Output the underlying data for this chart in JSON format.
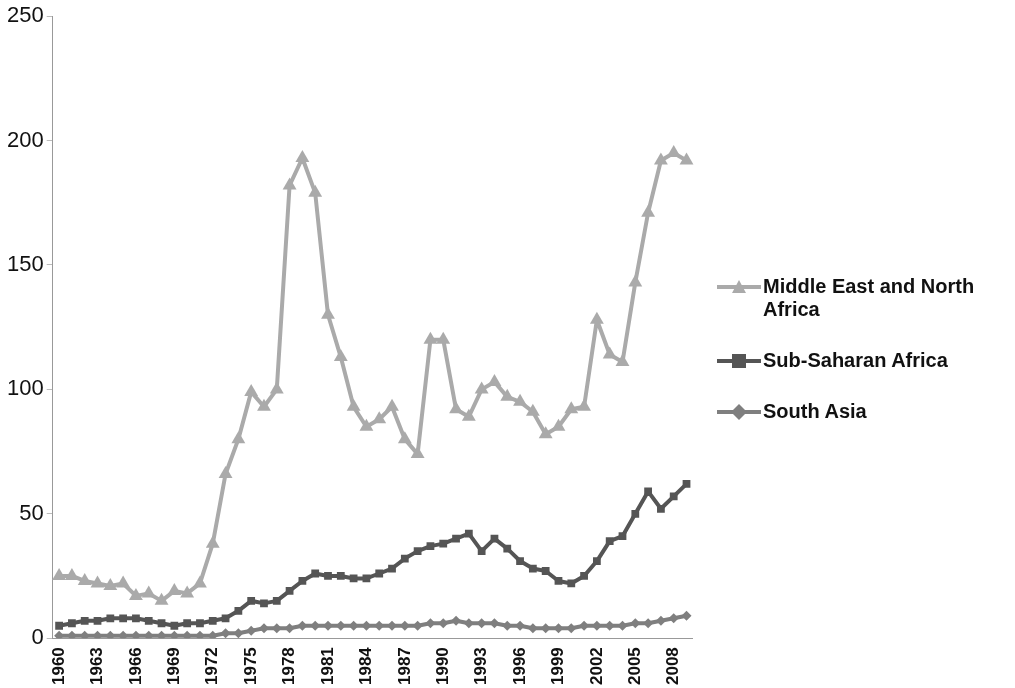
{
  "chart_data": {
    "type": "line",
    "categories": [
      "1960",
      null,
      null,
      "1963",
      null,
      null,
      "1966",
      null,
      null,
      "1969",
      null,
      null,
      "1972",
      null,
      null,
      "1975",
      null,
      null,
      "1978",
      null,
      null,
      "1981",
      null,
      null,
      "1984",
      null,
      null,
      "1987",
      null,
      null,
      "1990",
      null,
      null,
      "1993",
      null,
      null,
      "1996",
      null,
      null,
      "1999",
      null,
      null,
      "2002",
      null,
      null,
      "2005",
      null,
      null,
      "2008",
      null
    ],
    "series": [
      {
        "name": "Middle East and North Africa",
        "color": "#aaaaaa",
        "marker": "triangle",
        "values": [
          25,
          25,
          23,
          22,
          21,
          22,
          17,
          18,
          15,
          19,
          18,
          22,
          38,
          66,
          80,
          99,
          93,
          100,
          182,
          193,
          179,
          130,
          113,
          93,
          85,
          88,
          93,
          80,
          74,
          120,
          120,
          92,
          89,
          100,
          103,
          97,
          95,
          91,
          82,
          85,
          92,
          93,
          128,
          114,
          111,
          143,
          171,
          192,
          195,
          192
        ]
      },
      {
        "name": "Sub-Saharan Africa",
        "color": "#555555",
        "marker": "square",
        "values": [
          5,
          6,
          7,
          7,
          8,
          8,
          8,
          7,
          6,
          5,
          6,
          6,
          7,
          8,
          11,
          15,
          14,
          15,
          19,
          23,
          26,
          25,
          25,
          24,
          24,
          26,
          28,
          32,
          35,
          37,
          38,
          40,
          42,
          35,
          40,
          36,
          31,
          28,
          27,
          23,
          22,
          25,
          31,
          39,
          41,
          50,
          59,
          52,
          57,
          62
        ]
      },
      {
        "name": "South Asia",
        "color": "#7f7f7f",
        "marker": "diamond",
        "values": [
          1,
          1,
          1,
          1,
          1,
          1,
          1,
          1,
          1,
          1,
          1,
          1,
          1,
          2,
          2,
          3,
          4,
          4,
          4,
          5,
          5,
          5,
          5,
          5,
          5,
          5,
          5,
          5,
          5,
          6,
          6,
          7,
          6,
          6,
          6,
          5,
          5,
          4,
          4,
          4,
          4,
          5,
          5,
          5,
          5,
          6,
          6,
          7,
          8,
          9
        ]
      }
    ],
    "ylim": [
      0,
      250
    ],
    "yticks": [
      0,
      50,
      100,
      150,
      200,
      250
    ],
    "grid": false,
    "legend": "right",
    "line_style": "solid"
  }
}
